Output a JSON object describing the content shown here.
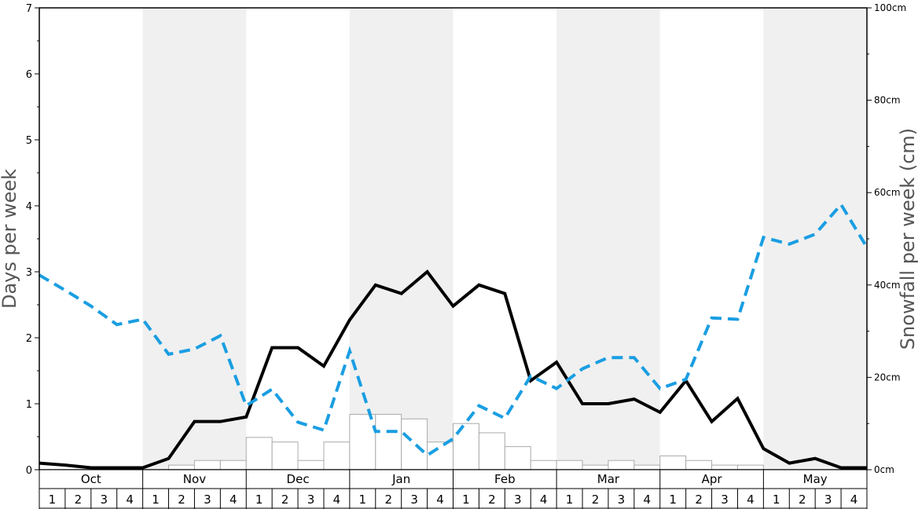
{
  "chart_data": {
    "type": "bar+line",
    "ylabel_left": "Days per week",
    "ylabel_right": "Snowfall per week (cm)",
    "ylim_left": [
      0,
      7
    ],
    "ylim_right": [
      0,
      100
    ],
    "left_ticks": [
      "0",
      "1",
      "2",
      "3",
      "4",
      "5",
      "6",
      "7"
    ],
    "right_ticks": [
      "0cm",
      "20cm",
      "40cm",
      "60cm",
      "80cm",
      "100cm"
    ],
    "months": [
      "Oct",
      "Nov",
      "Dec",
      "Jan",
      "Feb",
      "Mar",
      "Apr",
      "May"
    ],
    "week_labels": [
      "1",
      "2",
      "3",
      "4"
    ],
    "shaded_months": [
      "Nov",
      "Jan",
      "Mar",
      "May"
    ],
    "grid": false,
    "series": [
      {
        "type": "bar",
        "axis": "right",
        "color": "#ffffff",
        "stroke": "#aaaaaa",
        "values": [
          0,
          0,
          0,
          0,
          0,
          1,
          2,
          2,
          7,
          6,
          2,
          6,
          12,
          12,
          11,
          6,
          10,
          8,
          5,
          2,
          2,
          1,
          2,
          1,
          3,
          2,
          1,
          1,
          0,
          0,
          0,
          0
        ]
      },
      {
        "type": "line",
        "axis": "left",
        "color": "#000000",
        "style": "solid",
        "values": [
          0.1,
          0.07,
          0.03,
          0.03,
          0.03,
          0.17,
          0.73,
          0.73,
          0.8,
          1.85,
          1.85,
          1.57,
          2.27,
          2.8,
          2.67,
          3.0,
          2.48,
          2.8,
          2.67,
          1.35,
          1.63,
          1.0,
          1.0,
          1.07,
          0.87,
          1.35,
          0.73,
          1.08,
          0.32,
          0.1,
          0.17,
          0.03,
          0.03
        ]
      },
      {
        "type": "line",
        "axis": "left",
        "color": "#1a9ee2",
        "style": "dashed",
        "values": [
          2.95,
          2.72,
          2.48,
          2.2,
          2.28,
          1.75,
          1.83,
          2.03,
          0.97,
          1.22,
          0.72,
          0.6,
          1.8,
          0.58,
          0.58,
          0.22,
          0.47,
          0.97,
          0.78,
          1.42,
          1.23,
          1.53,
          1.7,
          1.7,
          1.23,
          1.37,
          2.3,
          2.28,
          3.52,
          3.42,
          3.57,
          4.02,
          3.37
        ]
      }
    ]
  }
}
